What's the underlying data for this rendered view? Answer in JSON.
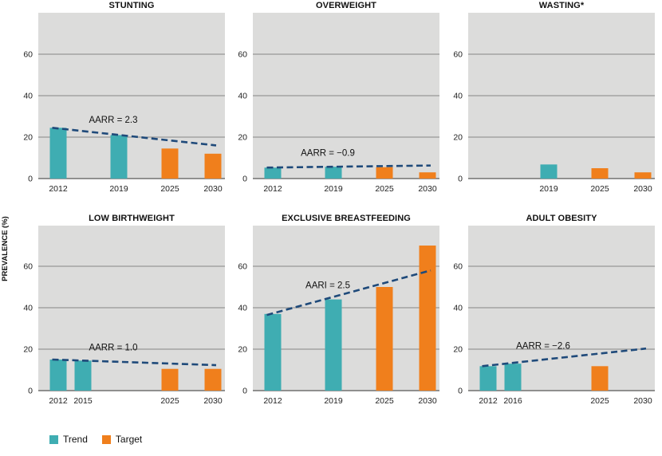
{
  "ylabel": "PREVALENCE (%)",
  "colors": {
    "trend": "#3fadb2",
    "target": "#f07f1c",
    "trendline": "#1f4a7a",
    "panel_bg": "#dcdcdb"
  },
  "legend": [
    {
      "label": "Trend",
      "color": "#3fadb2"
    },
    {
      "label": "Target",
      "color": "#f07f1c"
    }
  ],
  "chart_data": [
    {
      "type": "bar",
      "title": "STUNTING",
      "ylim": [
        0,
        80
      ],
      "yticks": [
        0,
        20,
        40,
        60
      ],
      "categories": [
        "2012",
        "2019",
        "2025",
        "2030"
      ],
      "series": [
        {
          "values": [
            24.5,
            21,
            14.5,
            12
          ],
          "kinds": [
            "trend",
            "trend",
            "target",
            "target"
          ]
        }
      ],
      "trendline": {
        "from": {
          "x": "2012",
          "y": 24.5
        },
        "to": {
          "x": "2030",
          "y": 16
        }
      },
      "annotation": "AARR = 2.3"
    },
    {
      "type": "bar",
      "title": "OVERWEIGHT",
      "ylim": [
        0,
        80
      ],
      "yticks": [
        0,
        20,
        40,
        60
      ],
      "categories": [
        "2012",
        "2019",
        "2025",
        "2030"
      ],
      "series": [
        {
          "values": [
            5.3,
            5.7,
            5.5,
            3
          ],
          "kinds": [
            "trend",
            "trend",
            "target",
            "target"
          ]
        }
      ],
      "trendline": {
        "from": {
          "x": "2012",
          "y": 5.3
        },
        "to": {
          "x": "2030",
          "y": 6.3
        }
      },
      "annotation": "AARR = −0.9"
    },
    {
      "type": "bar",
      "title": "WASTING*",
      "ylim": [
        0,
        80
      ],
      "yticks": [
        0,
        20,
        40,
        60
      ],
      "categories": [
        "2019",
        "2025",
        "2030"
      ],
      "series": [
        {
          "values": [
            6.8,
            5,
            3
          ],
          "kinds": [
            "trend",
            "target",
            "target"
          ]
        }
      ],
      "trendline": null,
      "annotation": ""
    },
    {
      "type": "bar",
      "title": "LOW BIRTHWEIGHT",
      "ylim": [
        0,
        80
      ],
      "yticks": [
        0,
        20,
        40,
        60
      ],
      "categories": [
        "2012",
        "2015",
        "2025",
        "2030"
      ],
      "series": [
        {
          "values": [
            15,
            14.5,
            10.5,
            10.5
          ],
          "kinds": [
            "trend",
            "trend",
            "target",
            "target"
          ]
        }
      ],
      "trendline": {
        "from": {
          "x": "2012",
          "y": 15
        },
        "to": {
          "x": "2030",
          "y": 12.3
        }
      },
      "annotation": "AARR = 1.0"
    },
    {
      "type": "bar",
      "title": "EXCLUSIVE BREASTFEEDING",
      "ylim": [
        0,
        80
      ],
      "yticks": [
        0,
        20,
        40,
        60
      ],
      "categories": [
        "2012",
        "2019",
        "2025",
        "2030"
      ],
      "series": [
        {
          "values": [
            37,
            44,
            50,
            70
          ],
          "kinds": [
            "trend",
            "trend",
            "target",
            "target"
          ]
        }
      ],
      "trendline": {
        "from": {
          "x": "2012",
          "y": 36.5
        },
        "to": {
          "x": "2030",
          "y": 58
        }
      },
      "annotation": "AARI = 2.5"
    },
    {
      "type": "bar",
      "title": "ADULT OBESITY",
      "ylim": [
        0,
        80
      ],
      "yticks": [
        0,
        20,
        40,
        60
      ],
      "categories": [
        "2012",
        "2016",
        "2025",
        "2030"
      ],
      "series": [
        {
          "values": [
            11.8,
            13,
            11.8,
            null
          ],
          "kinds": [
            "trend",
            "trend",
            "target",
            "target"
          ]
        }
      ],
      "trendline": {
        "from": {
          "x": "2012",
          "y": 11.8
        },
        "to": {
          "x": "2030",
          "y": 20.3
        }
      },
      "annotation": "AARR = −2.6"
    }
  ]
}
